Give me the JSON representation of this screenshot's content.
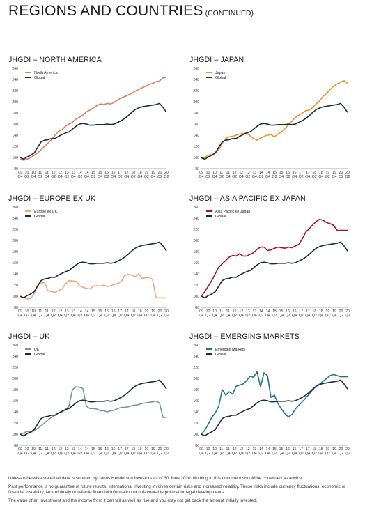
{
  "header": {
    "title": "REGIONS AND COUNTRIES",
    "subtitle": "(CONTINUED)"
  },
  "chart_data": [
    {
      "type": "line",
      "title": "JHGDI – NORTH AMERICA",
      "ylim": [
        80,
        260
      ],
      "yticks": [
        80,
        100,
        120,
        140,
        160,
        180,
        200,
        220,
        240,
        260
      ],
      "x_tick_years": [
        "09",
        "10",
        "10",
        "11",
        "11",
        "12",
        "12",
        "13",
        "13",
        "14",
        "14",
        "15",
        "15",
        "16",
        "16",
        "17",
        "17",
        "18",
        "18",
        "19",
        "19",
        "20",
        "20"
      ],
      "x_tick_quarters": [
        "Q4",
        "Q2",
        "Q4",
        "Q2",
        "Q4",
        "Q2",
        "Q4",
        "Q2",
        "Q4",
        "Q2",
        "Q4",
        "Q2",
        "Q4",
        "Q2",
        "Q4",
        "Q2",
        "Q4",
        "Q2",
        "Q4",
        "Q2",
        "Q4",
        "Q2",
        "Q2"
      ],
      "legend_position": "top-left",
      "grid": false,
      "series": [
        {
          "name": "North America",
          "color": "#e07b5b",
          "values": [
            97,
            95,
            97,
            100,
            104,
            108,
            114,
            120,
            126,
            132,
            140,
            147,
            150,
            156,
            160,
            163,
            169,
            172,
            176,
            182,
            185,
            189,
            193,
            196,
            195,
            197,
            196,
            199,
            203,
            207,
            209,
            212,
            215,
            219,
            222,
            225,
            228,
            231,
            233,
            236,
            237,
            243,
            243
          ]
        },
        {
          "name": "Global",
          "color": "#1c2b39",
          "values": [
            100,
            97,
            101,
            104,
            108,
            118,
            128,
            131,
            132,
            134,
            134,
            138,
            141,
            144,
            146,
            151,
            156,
            160,
            161,
            160,
            158,
            158,
            159,
            159,
            159,
            160,
            159,
            160,
            163,
            166,
            170,
            175,
            181,
            186,
            189,
            191,
            192,
            193,
            194,
            195,
            197,
            190,
            181
          ]
        }
      ]
    },
    {
      "type": "line",
      "title": "JHGDI – JAPAN",
      "ylim": [
        80,
        260
      ],
      "yticks": [
        80,
        100,
        120,
        140,
        160,
        180,
        200,
        220,
        240,
        260
      ],
      "x_tick_years": [
        "09",
        "10",
        "10",
        "11",
        "11",
        "12",
        "12",
        "13",
        "13",
        "14",
        "14",
        "15",
        "15",
        "16",
        "16",
        "17",
        "17",
        "18",
        "18",
        "19",
        "19",
        "20",
        "20"
      ],
      "x_tick_quarters": [
        "Q4",
        "Q2",
        "Q4",
        "Q2",
        "Q4",
        "Q2",
        "Q4",
        "Q2",
        "Q4",
        "Q2",
        "Q4",
        "Q2",
        "Q4",
        "Q2",
        "Q4",
        "Q2",
        "Q4",
        "Q2",
        "Q4",
        "Q2",
        "Q4",
        "Q2",
        "Q2"
      ],
      "legend_position": "top-left",
      "grid": false,
      "series": [
        {
          "name": "Japan",
          "color": "#f0922a",
          "values": [
            98,
            100,
            104,
            105,
            108,
            114,
            125,
            134,
            137,
            138,
            140,
            142,
            143,
            144,
            139,
            134,
            131,
            135,
            138,
            140,
            141,
            137,
            142,
            146,
            152,
            158,
            165,
            172,
            176,
            180,
            184,
            185,
            190,
            196,
            202,
            210,
            215,
            222,
            228,
            232,
            235,
            238,
            233
          ]
        },
        {
          "name": "Global",
          "color": "#1c2b39",
          "values": [
            100,
            97,
            101,
            104,
            108,
            118,
            128,
            131,
            132,
            134,
            134,
            138,
            141,
            144,
            146,
            151,
            156,
            160,
            161,
            160,
            158,
            158,
            159,
            159,
            159,
            160,
            159,
            160,
            163,
            166,
            170,
            175,
            181,
            186,
            189,
            191,
            192,
            193,
            194,
            195,
            197,
            190,
            181
          ]
        }
      ]
    },
    {
      "type": "line",
      "title": "JHGDI – EUROPE EX UK",
      "ylim": [
        80,
        260
      ],
      "yticks": [
        80,
        100,
        120,
        140,
        160,
        180,
        200,
        220,
        240,
        260
      ],
      "x_tick_years": [
        "09",
        "10",
        "10",
        "11",
        "11",
        "12",
        "12",
        "13",
        "13",
        "14",
        "14",
        "15",
        "15",
        "16",
        "16",
        "17",
        "17",
        "18",
        "18",
        "19",
        "19",
        "20",
        "20"
      ],
      "x_tick_quarters": [
        "Q4",
        "Q2",
        "Q4",
        "Q2",
        "Q4",
        "Q2",
        "Q4",
        "Q2",
        "Q4",
        "Q2",
        "Q4",
        "Q2",
        "Q4",
        "Q2",
        "Q4",
        "Q2",
        "Q4",
        "Q2",
        "Q4",
        "Q2",
        "Q4",
        "Q2",
        "Q2"
      ],
      "legend_position": "top-left",
      "grid": false,
      "series": [
        {
          "name": "Europe ex UK",
          "color": "#f2a77a",
          "values": [
            99,
            97,
            95,
            96,
            104,
            121,
            124,
            124,
            110,
            108,
            107,
            110,
            113,
            122,
            128,
            127,
            127,
            119,
            116,
            114,
            113,
            118,
            119,
            118,
            120,
            117,
            119,
            121,
            123,
            126,
            137,
            139,
            138,
            135,
            140,
            132,
            133,
            134,
            130,
            97,
            97,
            97,
            97
          ]
        },
        {
          "name": "Global",
          "color": "#1c2b39",
          "values": [
            100,
            97,
            101,
            104,
            108,
            118,
            128,
            131,
            132,
            134,
            134,
            138,
            141,
            144,
            146,
            151,
            156,
            160,
            161,
            160,
            158,
            158,
            159,
            159,
            159,
            160,
            159,
            160,
            163,
            166,
            170,
            175,
            181,
            186,
            189,
            191,
            192,
            193,
            194,
            195,
            197,
            190,
            181
          ]
        }
      ]
    },
    {
      "type": "line",
      "title": "JHGDI – ASIA PACIFIC EX JAPAN",
      "ylim": [
        80,
        260
      ],
      "yticks": [
        80,
        100,
        120,
        140,
        160,
        180,
        200,
        220,
        240,
        260
      ],
      "x_tick_years": [
        "09",
        "10",
        "10",
        "11",
        "11",
        "12",
        "12",
        "13",
        "13",
        "14",
        "14",
        "15",
        "15",
        "16",
        "16",
        "17",
        "17",
        "18",
        "18",
        "19",
        "19",
        "20",
        "20"
      ],
      "x_tick_quarters": [
        "Q4",
        "Q2",
        "Q4",
        "Q2",
        "Q4",
        "Q2",
        "Q4",
        "Q2",
        "Q4",
        "Q2",
        "Q4",
        "Q2",
        "Q4",
        "Q2",
        "Q4",
        "Q2",
        "Q4",
        "Q2",
        "Q4",
        "Q2",
        "Q4",
        "Q2",
        "Q2"
      ],
      "legend_position": "top-left",
      "grid": false,
      "series": [
        {
          "name": "Asia Pacific ex Japan",
          "color": "#a4142c",
          "values": [
            100,
            108,
            118,
            128,
            140,
            152,
            158,
            164,
            170,
            173,
            172,
            176,
            172,
            172,
            175,
            178,
            184,
            188,
            188,
            182,
            183,
            186,
            188,
            187,
            186,
            188,
            187,
            190,
            193,
            203,
            215,
            221,
            228,
            234,
            238,
            236,
            232,
            230,
            227,
            218,
            218,
            218,
            218
          ]
        },
        {
          "name": "Global",
          "color": "#1c2b39",
          "values": [
            100,
            97,
            101,
            104,
            108,
            118,
            128,
            131,
            132,
            134,
            134,
            138,
            141,
            144,
            146,
            151,
            156,
            160,
            161,
            160,
            158,
            158,
            159,
            159,
            159,
            160,
            159,
            160,
            163,
            166,
            170,
            175,
            181,
            186,
            189,
            191,
            192,
            193,
            194,
            195,
            197,
            190,
            181
          ]
        }
      ]
    },
    {
      "type": "line",
      "title": "JHGDI – UK",
      "ylim": [
        80,
        260
      ],
      "yticks": [
        80,
        100,
        120,
        140,
        160,
        180,
        200,
        220,
        240,
        260
      ],
      "x_tick_years": [
        "09",
        "10",
        "10",
        "11",
        "11",
        "12",
        "12",
        "13",
        "13",
        "14",
        "14",
        "15",
        "15",
        "16",
        "16",
        "17",
        "17",
        "18",
        "18",
        "19",
        "19",
        "20",
        "20"
      ],
      "x_tick_quarters": [
        "Q4",
        "Q2",
        "Q4",
        "Q2",
        "Q4",
        "Q2",
        "Q4",
        "Q2",
        "Q4",
        "Q2",
        "Q4",
        "Q2",
        "Q4",
        "Q2",
        "Q4",
        "Q2",
        "Q4",
        "Q2",
        "Q4",
        "Q2",
        "Q4",
        "Q2",
        "Q2"
      ],
      "legend_position": "top-left",
      "grid": false,
      "series": [
        {
          "name": "UK",
          "color": "#8090a0",
          "values": [
            100,
            102,
            105,
            103,
            106,
            110,
            115,
            120,
            126,
            130,
            134,
            138,
            140,
            144,
            150,
            180,
            185,
            184,
            182,
            150,
            146,
            146,
            145,
            142,
            142,
            140,
            142,
            143,
            146,
            148,
            148,
            149,
            151,
            152,
            153,
            155,
            156,
            157,
            158,
            159,
            156,
            130,
            130
          ]
        },
        {
          "name": "Global",
          "color": "#1c2b39",
          "values": [
            100,
            97,
            101,
            104,
            108,
            118,
            128,
            131,
            132,
            134,
            134,
            138,
            141,
            144,
            146,
            151,
            156,
            160,
            161,
            160,
            158,
            158,
            159,
            159,
            159,
            160,
            159,
            160,
            163,
            166,
            170,
            175,
            181,
            186,
            189,
            191,
            192,
            193,
            194,
            195,
            197,
            190,
            181
          ]
        }
      ]
    },
    {
      "type": "line",
      "title": "JHGDI – EMERGING MARKETS",
      "ylim": [
        80,
        260
      ],
      "yticks": [
        80,
        100,
        120,
        140,
        160,
        180,
        200,
        220,
        240,
        260
      ],
      "x_tick_years": [
        "09",
        "10",
        "10",
        "11",
        "11",
        "12",
        "12",
        "13",
        "13",
        "14",
        "14",
        "15",
        "15",
        "16",
        "16",
        "17",
        "17",
        "18",
        "18",
        "19",
        "19",
        "20",
        "20"
      ],
      "x_tick_quarters": [
        "Q4",
        "Q2",
        "Q4",
        "Q2",
        "Q4",
        "Q2",
        "Q4",
        "Q2",
        "Q4",
        "Q2",
        "Q4",
        "Q2",
        "Q4",
        "Q2",
        "Q4",
        "Q2",
        "Q4",
        "Q2",
        "Q4",
        "Q2",
        "Q4",
        "Q2",
        "Q2"
      ],
      "legend_position": "top-left",
      "grid": false,
      "series": [
        {
          "name": "Emerging Markets",
          "color": "#1f7390",
          "values": [
            100,
            107,
            118,
            130,
            138,
            150,
            180,
            170,
            176,
            172,
            186,
            188,
            190,
            196,
            204,
            202,
            212,
            185,
            210,
            205,
            166,
            170,
            155,
            145,
            137,
            131,
            135,
            145,
            152,
            158,
            165,
            172,
            180,
            186,
            190,
            195,
            200,
            205,
            207,
            205,
            203,
            203,
            203
          ]
        },
        {
          "name": "Global",
          "color": "#1c2b39",
          "values": [
            100,
            97,
            101,
            104,
            108,
            118,
            128,
            131,
            132,
            134,
            134,
            138,
            141,
            144,
            146,
            151,
            156,
            160,
            161,
            160,
            158,
            158,
            159,
            159,
            159,
            160,
            159,
            160,
            163,
            166,
            170,
            175,
            181,
            186,
            189,
            191,
            192,
            193,
            194,
            195,
            197,
            190,
            181
          ]
        }
      ]
    }
  ],
  "footnotes": [
    "Unless otherwise stated all data is sourced by Janus Henderson Investors as of 30 June 2020. Nothing in this document should be construed as advice.",
    "Past performance is no guarantee of future results. International investing involves certain risks and increased volatility. These risks include currency fluctuations, economic or financial instability, lack of timely or reliable financial information or unfavourable political or legal developments.",
    "The value of an investment and the income from it can fall as well as rise and you may not get back the amount initially invested."
  ]
}
